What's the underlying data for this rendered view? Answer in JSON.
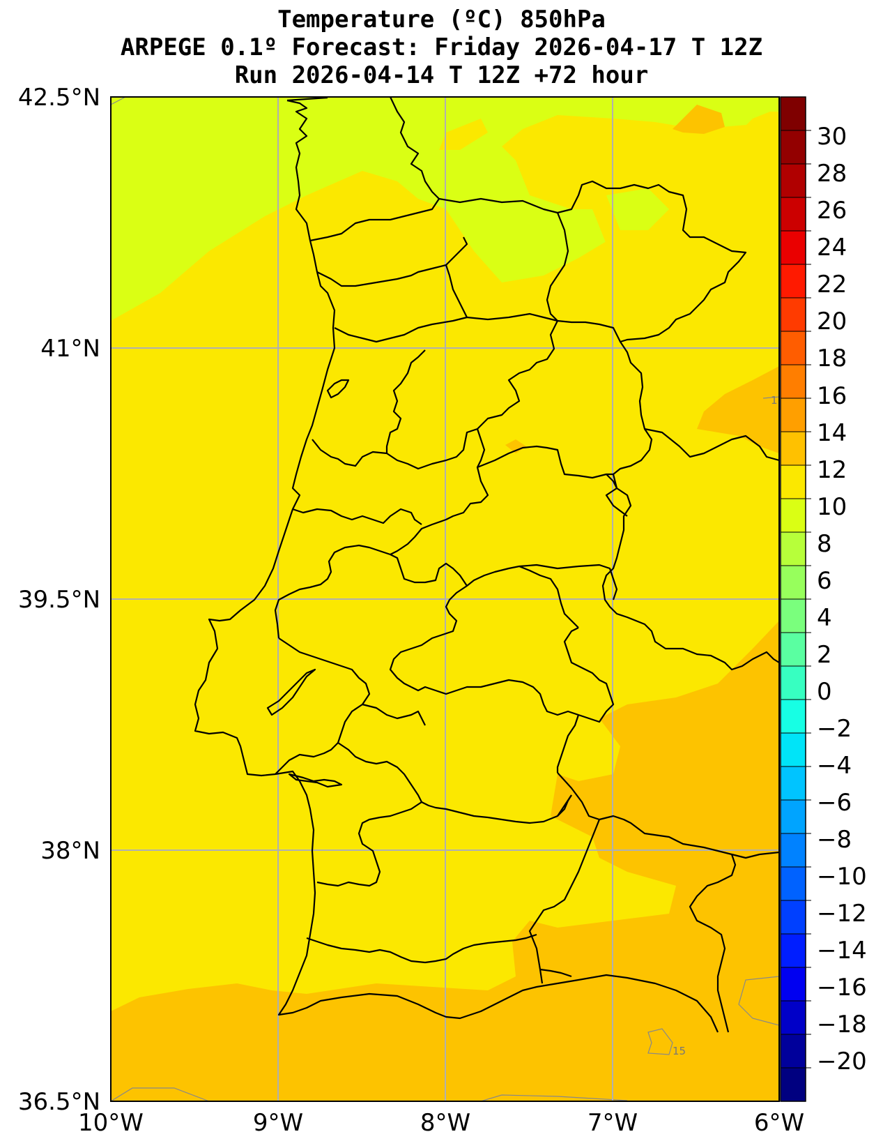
{
  "title": {
    "line1": "Temperature (ºC) 850hPa",
    "line2": "ARPEGE 0.1º Forecast: Friday 2026-04-17 T 12Z",
    "line3": "Run 2026-04-14 T 12Z +72 hour"
  },
  "map": {
    "region": "Portugal",
    "lon_range": [
      -10,
      -6
    ],
    "lat_range": [
      36.5,
      42.5
    ],
    "lat_ticks": [
      "42.5°N",
      "41°N",
      "39.5°N",
      "38°N",
      "36.5°N"
    ],
    "lon_ticks": [
      "10°W",
      "9°W",
      "8°W",
      "7°W",
      "6°W"
    ],
    "contour_labels": [
      "15",
      "1"
    ],
    "colors": {
      "field_12_14": "#fbe800",
      "field_10_12": "#daff14",
      "field_14_16": "#fdc300",
      "grid": "#b0b0b0",
      "borders": "#000000"
    }
  },
  "colorbar": {
    "labels": [
      "30",
      "28",
      "26",
      "24",
      "22",
      "20",
      "18",
      "16",
      "14",
      "12",
      "10",
      "8",
      "6",
      "4",
      "2",
      "0",
      "−2",
      "−4",
      "−6",
      "−8",
      "−10",
      "−12",
      "−14",
      "−16",
      "−18",
      "−20"
    ],
    "colors": [
      "#7f0000",
      "#930000",
      "#b00000",
      "#cc0000",
      "#ea0000",
      "#ff1a00",
      "#ff3b00",
      "#ff5d00",
      "#ff7e00",
      "#ff9f00",
      "#ffc100",
      "#fbe800",
      "#daff14",
      "#b7ff3a",
      "#97ff5c",
      "#7aff7d",
      "#5affa1",
      "#37ffc1",
      "#17ffe4",
      "#00e4f8",
      "#00c4ff",
      "#00a4ff",
      "#0082ff",
      "#0062ff",
      "#0040ff",
      "#001eff",
      "#0000f1",
      "#0000c8",
      "#00009b",
      "#000080"
    ]
  }
}
